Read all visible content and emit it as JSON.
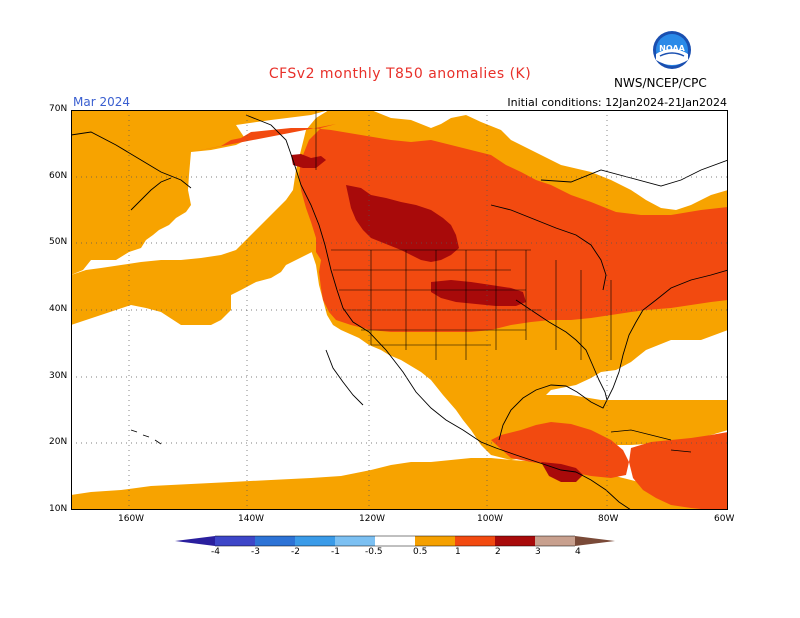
{
  "title": "CFSv2 monthly T850 anomalies (K)",
  "period": "Mar 2024",
  "initial_conditions": "Initial conditions: 12Jan2024-21Jan2024",
  "agency": "NWS/NCEP/CPC",
  "logo_text": "NOAA",
  "lat_labels": [
    "70N",
    "60N",
    "50N",
    "40N",
    "30N",
    "20N",
    "10N"
  ],
  "lon_labels": [
    "160W",
    "140W",
    "120W",
    "100W",
    "80W",
    "60W"
  ],
  "legend": {
    "labels": [
      "-4",
      "-3",
      "-2",
      "-1",
      "-0.5",
      "0.5",
      "1",
      "2",
      "3",
      "4"
    ],
    "colors": [
      "#2a1f9e",
      "#3d46c8",
      "#2d73d6",
      "#3a9be8",
      "#7cc0f2",
      "#ffffff",
      "#f5a000",
      "#f24a10",
      "#a80a0a",
      "#c8a08e",
      "#7a4a38"
    ]
  },
  "colors": {
    "anom_0_5_1": "#f7a300",
    "anom_1_2": "#f24a10",
    "anom_2_3": "#a80a0a",
    "title": "#e8302a",
    "period": "#3a5fd0"
  }
}
